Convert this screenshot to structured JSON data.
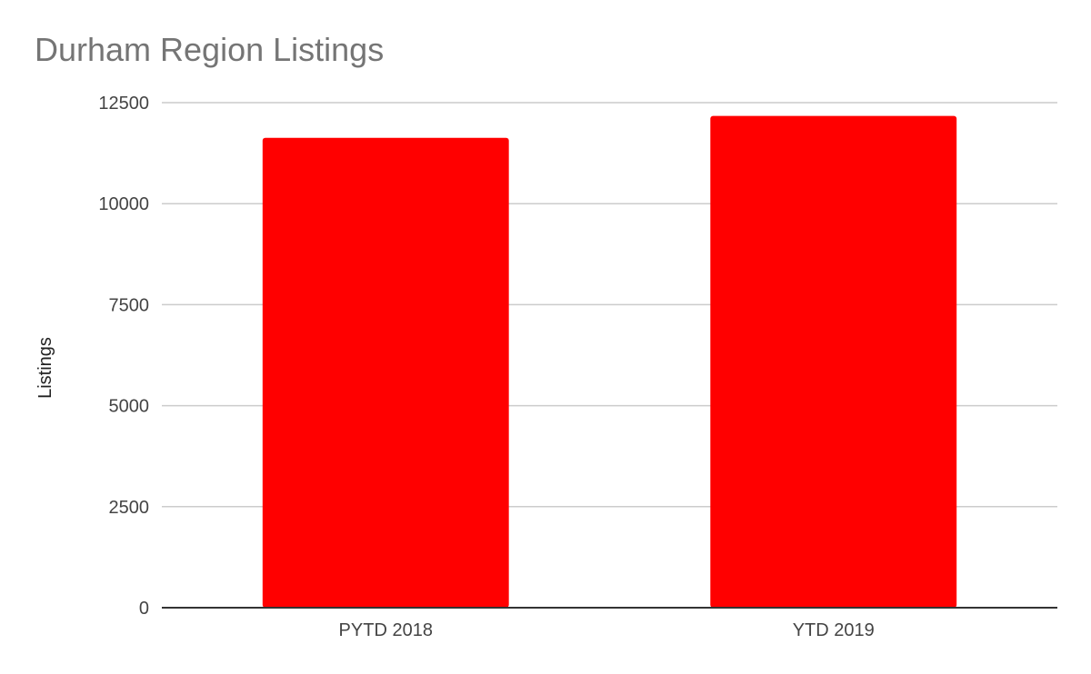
{
  "chart_data": {
    "type": "bar",
    "title": "Durham Region Listings",
    "xlabel": "",
    "ylabel": "Listings",
    "categories": [
      "PYTD 2018",
      "YTD 2019"
    ],
    "values": [
      11630,
      12170
    ],
    "ylim": [
      0,
      12500
    ],
    "yticks": [
      0,
      2500,
      5000,
      7500,
      10000,
      12500
    ],
    "bar_color": "#ff0000",
    "grid": true,
    "legend": "none"
  }
}
